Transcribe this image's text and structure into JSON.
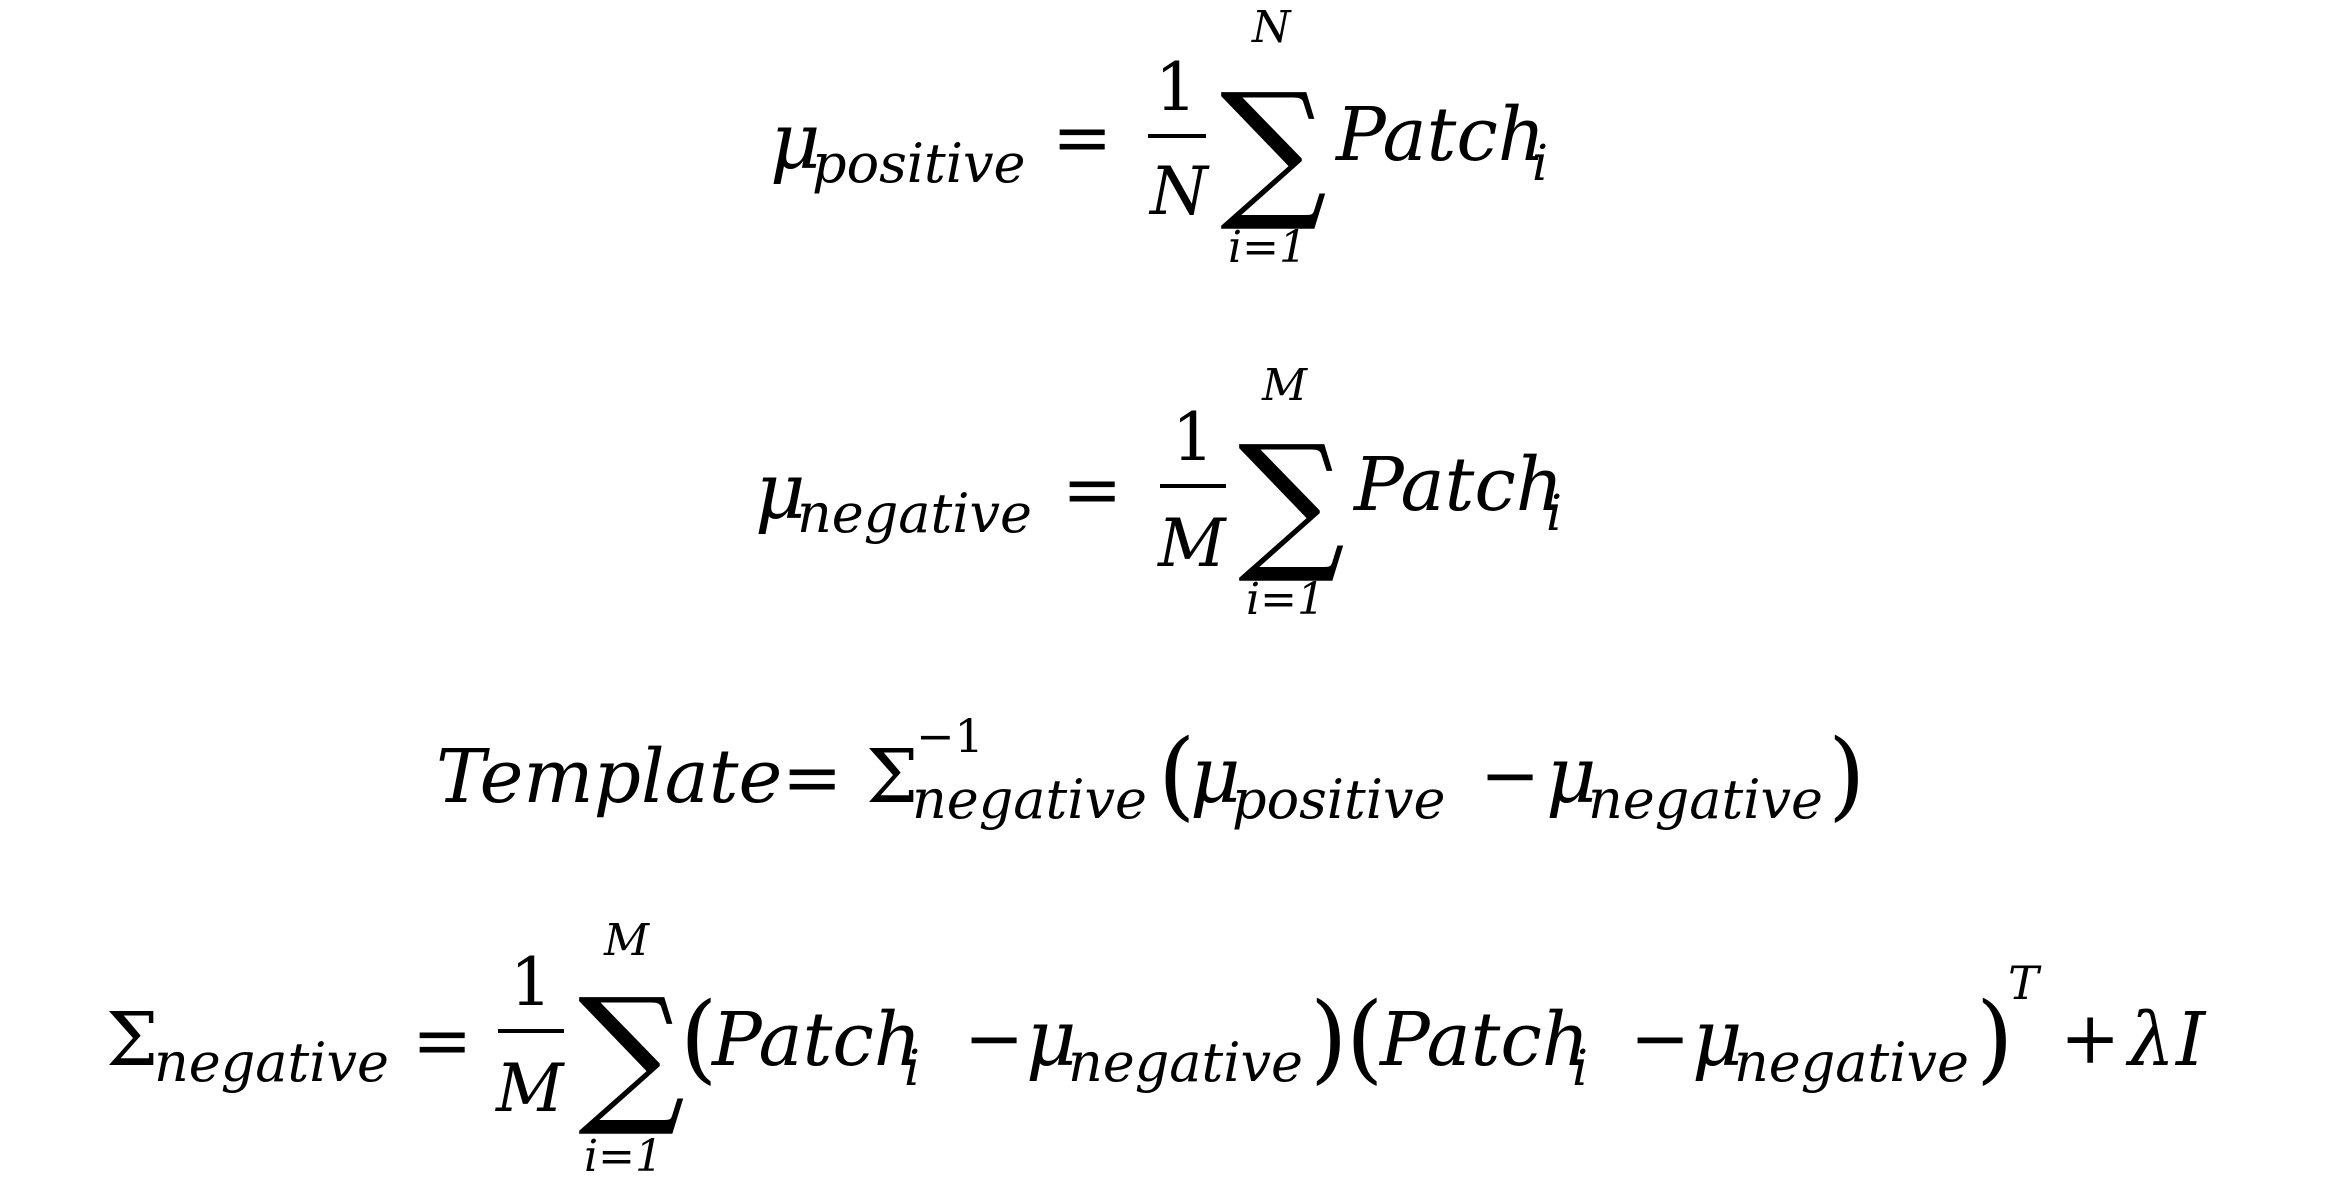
{
  "symbols": {
    "mu": "μ",
    "Sigma": "Σ",
    "sum": "∑",
    "equals": "=",
    "minus": "−",
    "plus": "+",
    "lparen": "(",
    "rparen": ")",
    "one": "1",
    "lambda": "λ",
    "identity": "I",
    "transpose": "T",
    "inverse": "−1"
  },
  "equations": {
    "mu_positive": {
      "sub": "positive",
      "denominator": "N",
      "lower_limit": "i=1",
      "upper_limit": "N",
      "term": "Patch",
      "term_sub": "i"
    },
    "mu_negative": {
      "sub": "negative",
      "denominator": "M",
      "lower_limit": "i=1",
      "upper_limit": "M",
      "term": "Patch",
      "term_sub": "i"
    },
    "template": {
      "lhs": "Template",
      "sigma_sub": "negative",
      "mu1_sub": "positive",
      "mu2_sub": "negative"
    },
    "sigma_negative": {
      "sub": "negative",
      "denominator": "M",
      "lower_limit": "i=1",
      "upper_limit": "M",
      "term1": "Patch",
      "term1_sub": "i",
      "mu1_sub": "negative",
      "term2": "Patch",
      "term2_sub": "i",
      "mu2_sub": "negative"
    }
  }
}
